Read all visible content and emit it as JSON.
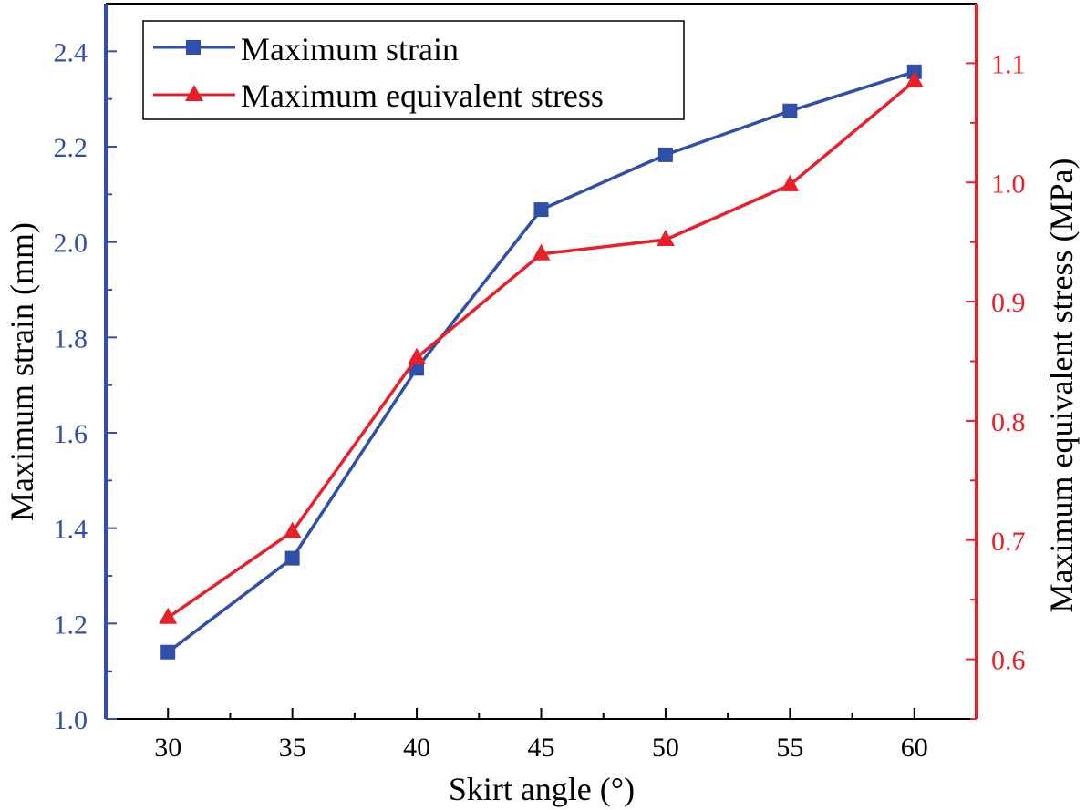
{
  "chart_data": {
    "type": "line",
    "x": [
      30,
      35,
      40,
      45,
      50,
      55,
      60
    ],
    "xlabel": "Skirt angle (°)",
    "xlim": [
      27.5,
      62.5
    ],
    "xticks": [
      "30",
      "35",
      "40",
      "45",
      "50",
      "55",
      "60"
    ],
    "ylabel_left": "Maximum strain (mm)",
    "ylim_left": [
      1.0,
      2.5
    ],
    "yticks_left": [
      "1.0",
      "1.2",
      "1.4",
      "1.6",
      "1.8",
      "2.0",
      "2.2",
      "2.4"
    ],
    "ylabel_right": "Maximum equivalent stress (MPa)",
    "ylim_right": [
      0.55,
      1.15
    ],
    "yticks_right": [
      "0.6",
      "0.7",
      "0.8",
      "0.9",
      "1.0",
      "1.1"
    ],
    "grid": false,
    "legend_position": "top-left",
    "series": [
      {
        "name": "Maximum strain",
        "axis": "left",
        "marker": "square",
        "color": "#3050a8",
        "values": [
          1.14,
          1.337,
          1.735,
          2.068,
          2.183,
          2.275,
          2.357
        ]
      },
      {
        "name": "Maximum equivalent stress",
        "axis": "right",
        "marker": "triangle",
        "color": "#e8202a",
        "values": [
          0.635,
          0.707,
          0.853,
          0.94,
          0.952,
          0.998,
          1.085
        ]
      }
    ]
  },
  "colors": {
    "left_axis": "#3050a8",
    "right_axis": "#e8202a",
    "frame": "#000000"
  }
}
